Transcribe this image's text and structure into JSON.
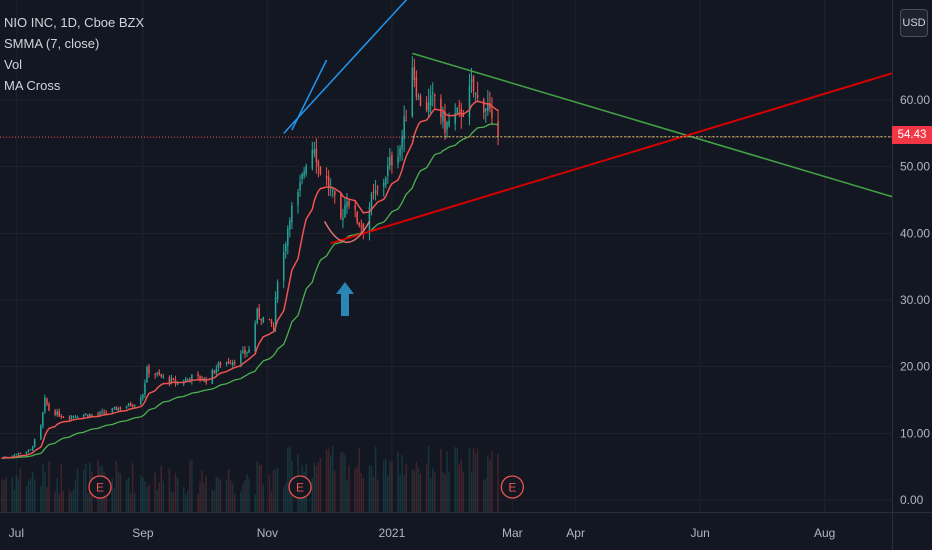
{
  "legend": {
    "symbol": "NIO INC, 1D, Cboe BZX",
    "smma": "SMMA (7, close)",
    "vol": "Vol",
    "ma_cross": "MA Cross"
  },
  "currency_button": "USD",
  "last_price_label": "54.43",
  "earnings_marker": "E",
  "colors": {
    "background": "#131722",
    "candle_up": "#26a69a",
    "candle_down": "#ef5350",
    "smma": "#ef5350",
    "ma_cross": "#4caf50",
    "trendline_blue": "#2196f3",
    "trendline_red": "#d50000",
    "trendline_green": "#43a047",
    "price_line": "#ef5350",
    "arrow": "#2a86b5"
  },
  "chart_data": {
    "type": "candlestick",
    "symbol": "NIO INC",
    "interval": "1D",
    "exchange": "Cboe BZX",
    "currency": "USD",
    "y_axis": {
      "ticks": [
        0,
        10,
        20,
        30,
        40,
        50,
        60
      ],
      "tick_labels": [
        "0.00",
        "10.00",
        "20.00",
        "30.00",
        "40.00",
        "50.00",
        "60.00"
      ],
      "range": [
        -1.5,
        75.5
      ]
    },
    "x_axis": {
      "range": [
        "2020-06-23",
        "2021-09-03"
      ],
      "tick_labels": [
        "Jul",
        "Sep",
        "Nov",
        "2021",
        "Mar",
        "Apr",
        "Jun",
        "Aug"
      ],
      "tick_dates": [
        "2020-07-01",
        "2020-09-01",
        "2020-11-01",
        "2021-01-01",
        "2021-03-01",
        "2021-04-01",
        "2021-06-01",
        "2021-08-01"
      ]
    },
    "last_price": 54.43,
    "price_anchors": [
      [
        "2020-06-24",
        6.3
      ],
      [
        "2020-07-08",
        7.5
      ],
      [
        "2020-07-13",
        11.0
      ],
      [
        "2020-07-15",
        15.0
      ],
      [
        "2020-07-17",
        13.5
      ],
      [
        "2020-07-24",
        12.5
      ],
      [
        "2020-08-03",
        12.8
      ],
      [
        "2020-08-10",
        12.8
      ],
      [
        "2020-08-20",
        13.8
      ],
      [
        "2020-08-28",
        14.5
      ],
      [
        "2020-09-01",
        16.0
      ],
      [
        "2020-09-03",
        19.5
      ],
      [
        "2020-09-10",
        18.5
      ],
      [
        "2020-09-18",
        17.5
      ],
      [
        "2020-09-25",
        18.5
      ],
      [
        "2020-10-02",
        18.0
      ],
      [
        "2020-10-09",
        20.5
      ],
      [
        "2020-10-16",
        21.0
      ],
      [
        "2020-10-23",
        22.5
      ],
      [
        "2020-10-27",
        28.0
      ],
      [
        "2020-11-04",
        26.0
      ],
      [
        "2020-11-06",
        33.5
      ],
      [
        "2020-11-09",
        37.0
      ],
      [
        "2020-11-12",
        43.0
      ],
      [
        "2020-11-16",
        45.5
      ],
      [
        "2020-11-20",
        51.0
      ],
      [
        "2020-11-24",
        53.5
      ],
      [
        "2020-11-26",
        50.0
      ],
      [
        "2020-11-30",
        48.0
      ],
      [
        "2020-12-03",
        45.5
      ],
      [
        "2020-12-07",
        42.0
      ],
      [
        "2020-12-10",
        45.5
      ],
      [
        "2020-12-15",
        42.0
      ],
      [
        "2020-12-18",
        41.0
      ],
      [
        "2020-12-22",
        45.0
      ],
      [
        "2020-12-28",
        48.0
      ],
      [
        "2020-12-31",
        50.5
      ],
      [
        "2021-01-05",
        53.0
      ],
      [
        "2021-01-08",
        58.0
      ],
      [
        "2021-01-11",
        65.5
      ],
      [
        "2021-01-14",
        60.0
      ],
      [
        "2021-01-19",
        59.0
      ],
      [
        "2021-01-22",
        60.5
      ],
      [
        "2021-01-27",
        56.0
      ],
      [
        "2021-02-01",
        57.5
      ],
      [
        "2021-02-05",
        58.5
      ],
      [
        "2021-02-09",
        62.0
      ],
      [
        "2021-02-12",
        60.0
      ],
      [
        "2021-02-17",
        59.0
      ],
      [
        "2021-02-19",
        56.0
      ],
      [
        "2021-02-22",
        54.43
      ]
    ],
    "volume_scale_max": 1.0,
    "earnings_dates": [
      "2020-08-11",
      "2020-11-17",
      "2021-03-01"
    ],
    "drawings": {
      "blue_trendlines": [
        [
          [
            "2020-11-09",
            55.0
          ],
          [
            "2021-01-23",
            80.0
          ]
        ],
        [
          [
            "2020-11-13",
            55.5
          ],
          [
            "2020-11-30",
            66.0
          ]
        ]
      ],
      "green_resistance": [
        [
          "2021-01-11",
          67.0
        ],
        [
          "2021-09-03",
          45.5
        ]
      ],
      "red_support": [
        [
          "2020-12-02",
          38.5
        ],
        [
          "2021-09-03",
          64.0
        ]
      ],
      "horizontal_green": [
        [
          "2021-01-11",
          54.5
        ],
        [
          "2021-09-03",
          54.5
        ]
      ],
      "cup_arc": {
        "center": [
          "2020-12-10",
          43.0
        ],
        "width_days": 22
      }
    }
  }
}
